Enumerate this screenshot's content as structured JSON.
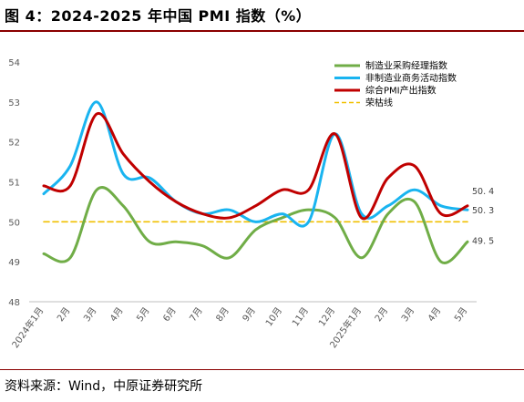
{
  "figure_title": "图 4：2024-2025 年中国 PMI 指数（%）",
  "source": "资料来源：Wind，中原证券研究所",
  "chart_data": {
    "type": "line",
    "categories": [
      "2024年1月",
      "2月",
      "3月",
      "4月",
      "5月",
      "6月",
      "7月",
      "8月",
      "9月",
      "10月",
      "11月",
      "12月",
      "2025年1月",
      "2月",
      "3月",
      "4月",
      "5月"
    ],
    "ylim": [
      48,
      54
    ],
    "yticks": [
      48,
      49,
      50,
      51,
      52,
      53,
      54
    ],
    "grid": false,
    "legend_position": "top-right",
    "series": [
      {
        "name": "制造业采购经理指数",
        "color": "#70ad47",
        "values": [
          49.2,
          49.1,
          50.8,
          50.4,
          49.5,
          49.5,
          49.4,
          49.1,
          49.8,
          50.1,
          50.3,
          50.1,
          49.1,
          50.2,
          50.5,
          49.0,
          49.5
        ]
      },
      {
        "name": "非制造业商务活动指数",
        "color": "#19b4f0",
        "values": [
          50.7,
          51.4,
          53.0,
          51.2,
          51.1,
          50.5,
          50.2,
          50.3,
          50.0,
          50.2,
          50.0,
          52.2,
          50.2,
          50.4,
          50.8,
          50.4,
          50.3
        ]
      },
      {
        "name": "综合PMI产出指数",
        "color": "#c00000",
        "values": [
          50.9,
          50.9,
          52.7,
          51.7,
          51.0,
          50.5,
          50.2,
          50.1,
          50.4,
          50.8,
          50.8,
          52.2,
          50.1,
          51.1,
          51.4,
          50.2,
          50.4
        ]
      },
      {
        "name": "荣枯线",
        "color": "#f0c000",
        "dashed": true,
        "values": [
          50,
          50,
          50,
          50,
          50,
          50,
          50,
          50,
          50,
          50,
          50,
          50,
          50,
          50,
          50,
          50,
          50
        ]
      }
    ],
    "end_labels": [
      {
        "series": 2,
        "text": "50. 4"
      },
      {
        "series": 1,
        "text": "50. 3"
      },
      {
        "series": 0,
        "text": "49. 5"
      }
    ]
  }
}
